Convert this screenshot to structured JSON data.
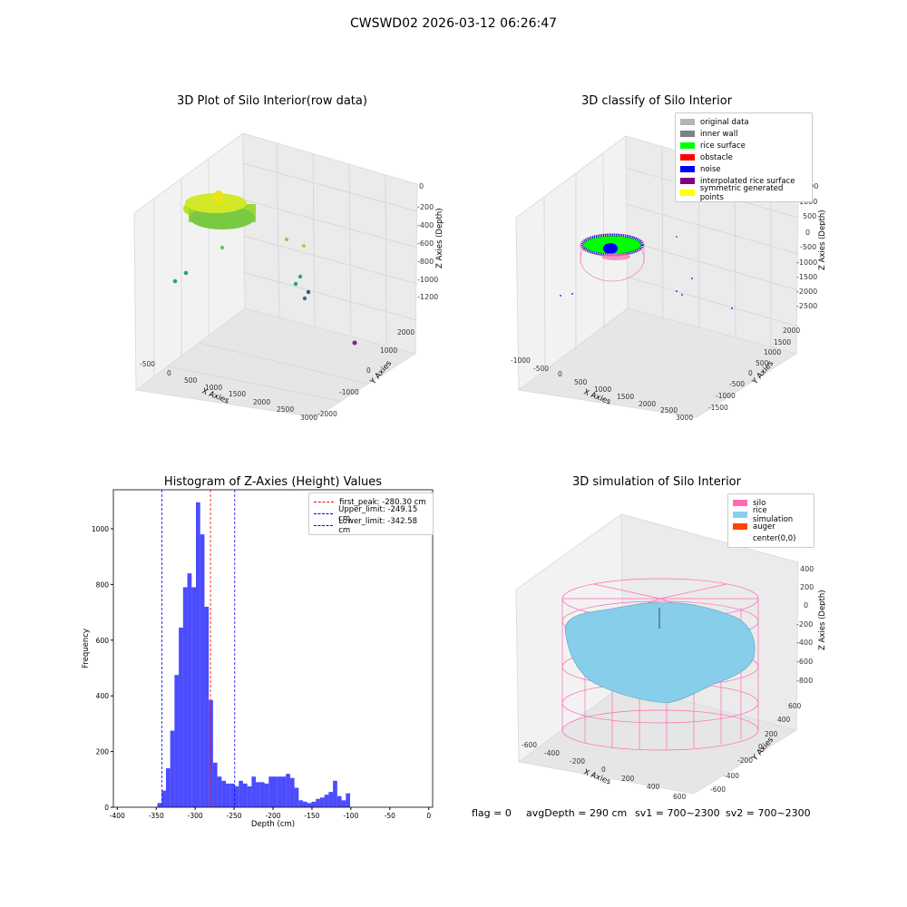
{
  "suptitle": "CWSWD02 2026-03-12 06:26:47",
  "panel1": {
    "title": "3D Plot of Silo Interior(row data)",
    "xlabel": "X Axies",
    "ylabel": "Y Axies",
    "zlabel": "Z Axies (Depth)",
    "xticks": [
      "-500",
      "0",
      "500",
      "1000",
      "1500",
      "2000",
      "2500",
      "3000"
    ],
    "yticks": [
      "2000",
      "1000",
      "0",
      "-1000",
      "-2000"
    ],
    "zticks": [
      "0",
      "-200",
      "-400",
      "-600",
      "-800",
      "-1000",
      "-1200"
    ]
  },
  "panel2": {
    "title": "3D classify of Silo Interior",
    "xlabel": "X Axies",
    "ylabel": "Y Axies",
    "zlabel": "Z Axies (Depth)",
    "xticks": [
      "-1000",
      "-500",
      "0",
      "500",
      "1000",
      "1500",
      "2000",
      "2500",
      "3000"
    ],
    "yticks": [
      "2000",
      "1500",
      "1000",
      "500",
      "0",
      "-500",
      "-1000",
      "-1500"
    ],
    "zticks": [
      "1500",
      "1000",
      "500",
      "0",
      "-500",
      "-1000",
      "-1500",
      "-2000",
      "-2500"
    ],
    "legend": [
      {
        "label": "original data",
        "color": "#b3b3b3"
      },
      {
        "label": "inner wall",
        "color": "#808080"
      },
      {
        "label": "rice surface",
        "color": "#00ff00"
      },
      {
        "label": "obstacle",
        "color": "#ff0000"
      },
      {
        "label": "noise",
        "color": "#0000ff"
      },
      {
        "label": "interpolated rice surface",
        "color": "#800080"
      },
      {
        "label": "symmetric generated points",
        "color": "#ffff00"
      }
    ]
  },
  "panel3": {
    "title": "Histogram of Z-Axies (Height) Values",
    "xlabel": "Depth (cm)",
    "ylabel": "Frequency",
    "legend": [
      {
        "label": "first_peak: -280.30 cm",
        "color": "#ff0000"
      },
      {
        "label": "Upper_limit: -249.15 cm",
        "color": "#0000ff"
      },
      {
        "label": "Lower_limit: -342.58 cm",
        "color": "#0000ff"
      }
    ]
  },
  "panel4": {
    "title": "3D simulation of Silo Interior",
    "xlabel": "X Axies",
    "ylabel": "Y Axies",
    "zlabel": "Z Axies (Depth)",
    "xticks": [
      "-600",
      "-400",
      "-200",
      "0",
      "200",
      "400",
      "600"
    ],
    "yticks": [
      "600",
      "400",
      "200",
      "0",
      "-200",
      "-400",
      "-600"
    ],
    "zticks": [
      "400",
      "200",
      "0",
      "-200",
      "-400",
      "-600",
      "-800"
    ],
    "legend": [
      {
        "label": "silo",
        "color": "#ff69b4"
      },
      {
        "label": "rice simulation",
        "color": "#87ceeb"
      },
      {
        "label": "auger",
        "color": "#ff4500"
      },
      {
        "label": "center(0,0)",
        "color": "#ffffff"
      }
    ]
  },
  "status": {
    "flag": "flag = 0",
    "avg": "avgDepth = 290 cm",
    "sv1": "sv1 = 700~2300",
    "sv2": "sv2 = 700~2300"
  },
  "chart_data": [
    {
      "type": "scatter",
      "title": "3D Plot of Silo Interior(row data)",
      "xlabel": "X Axies",
      "ylabel": "Y Axies",
      "zlabel": "Z Axies (Depth)"
    },
    {
      "type": "scatter",
      "title": "3D classify of Silo Interior",
      "xlabel": "X Axies",
      "ylabel": "Y Axies",
      "zlabel": "Z Axies (Depth)"
    },
    {
      "type": "bar",
      "title": "Histogram of Z-Axies (Height) Values",
      "xlabel": "Depth (cm)",
      "ylabel": "Frequency",
      "xlim": [
        -405,
        5
      ],
      "ylim": [
        0,
        1140
      ],
      "xticks": [
        -400,
        -350,
        -300,
        -250,
        -200,
        -150,
        -100,
        -50,
        0
      ],
      "yticks": [
        0,
        200,
        400,
        600,
        800,
        1000
      ],
      "bin_width": 5.5,
      "bin_start": -348.5,
      "values": [
        15,
        60,
        140,
        275,
        475,
        645,
        790,
        840,
        790,
        1095,
        980,
        720,
        385,
        160,
        110,
        95,
        85,
        85,
        75,
        95,
        85,
        75,
        110,
        90,
        90,
        85,
        110,
        110,
        110,
        110,
        120,
        105,
        70,
        25,
        20,
        15,
        20,
        30,
        35,
        45,
        55,
        95,
        40,
        25,
        50
      ],
      "lines": [
        {
          "name": "first_peak: -280.30 cm",
          "x": -280.3,
          "color": "#ff0000"
        },
        {
          "name": "Upper_limit: -249.15 cm",
          "x": -249.15,
          "color": "#0000ff"
        },
        {
          "name": "Lower_limit: -342.58 cm",
          "x": -342.58,
          "color": "#0000ff"
        }
      ]
    },
    {
      "type": "scatter",
      "title": "3D simulation of Silo Interior",
      "xlabel": "X Axies",
      "ylabel": "Y Axies",
      "zlabel": "Z Axies (Depth)"
    }
  ]
}
